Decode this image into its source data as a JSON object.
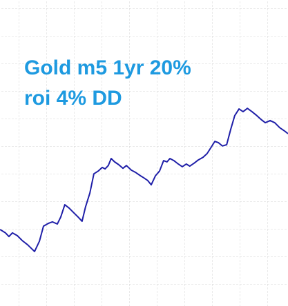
{
  "chart_data": {
    "type": "line",
    "annotations": [
      "Gold m5 1yr 20%",
      "roi 4% DD"
    ],
    "annotation_color": "#1e9ae0",
    "grid": true,
    "xlim": [
      0,
      100
    ],
    "ylim": [
      0,
      100
    ],
    "series": [
      {
        "color": "#1f1fa8",
        "x": [
          0,
          1.9,
          3.1,
          4.3,
          6,
          7.7,
          9.6,
          12,
          13.7,
          15.1,
          16.8,
          18.2,
          19.9,
          21.1,
          22.5,
          24,
          25.7,
          27.1,
          28.5,
          29.7,
          31.2,
          32.6,
          34.1,
          35.5,
          36.5,
          37.6,
          38.6,
          39.8,
          41.2,
          42.7,
          43.9,
          45.6,
          47,
          48.7,
          49.9,
          51.3,
          52.5,
          54,
          55.4,
          56.8,
          58,
          59,
          60.4,
          61.9,
          63.3,
          64.7,
          65.9,
          67.6,
          68.8,
          70.5,
          71.9,
          73.4,
          74.6,
          75.8,
          77.2,
          78.7,
          80.1,
          81.5,
          83,
          84.4,
          85.9,
          87.5,
          89.2,
          90.6,
          92.1,
          93.8,
          95.4,
          97.1,
          98.8,
          100
        ],
        "values": [
          25,
          23.9,
          22.7,
          23.9,
          23,
          21.4,
          20,
          17.8,
          21.2,
          26.1,
          27,
          27.5,
          26.8,
          29.1,
          33.1,
          32,
          30.4,
          29.1,
          27.7,
          32.4,
          36.9,
          43.2,
          44.1,
          45.3,
          44.8,
          45.9,
          48.2,
          47.1,
          46.2,
          45,
          45.9,
          44.4,
          43.7,
          42.6,
          41.9,
          41,
          39.6,
          42.6,
          44.1,
          47.5,
          47.1,
          48.2,
          47.5,
          46.4,
          45.5,
          46.4,
          45.7,
          46.8,
          47.7,
          48.6,
          49.8,
          52,
          53.8,
          53.4,
          52.3,
          52.7,
          57.7,
          62.2,
          64.4,
          63.5,
          64.6,
          63.5,
          62.2,
          61,
          59.9,
          60.6,
          59.9,
          58.3,
          57.2,
          56.3
        ]
      }
    ]
  }
}
